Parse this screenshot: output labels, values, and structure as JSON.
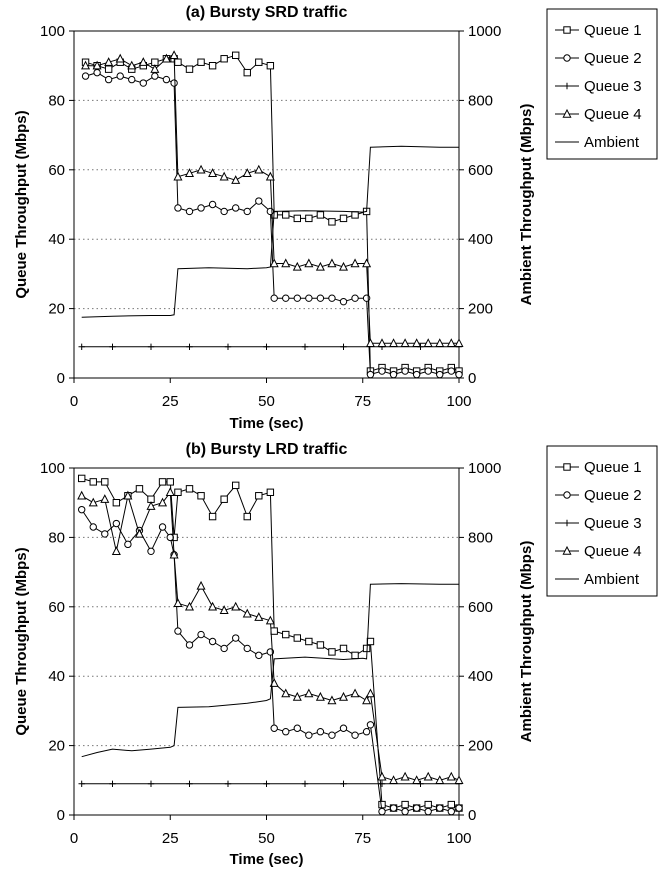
{
  "chart_data": [
    {
      "type": "line",
      "title": "(a) Bursty SRD traffic",
      "xlabel": "Time (sec)",
      "ylabel": "Queue Throughput (Mbps)",
      "y2label": "Ambient Throughput (Mbps)",
      "xlim": [
        0,
        100
      ],
      "ylim": [
        0,
        100
      ],
      "y2lim": [
        0,
        1000
      ],
      "x_ticks": [
        "0",
        "25",
        "50",
        "75",
        "100"
      ],
      "y_ticks": [
        "0",
        "20",
        "40",
        "60",
        "80",
        "100"
      ],
      "y2_ticks": [
        "0",
        "200",
        "400",
        "600",
        "800",
        "1000"
      ],
      "grid": "horizontal dotted",
      "legend_position": "right",
      "series": [
        {
          "name": "Queue 1",
          "marker": "square",
          "axis": "left",
          "x": [
            3,
            6,
            9,
            12,
            15,
            18,
            21,
            24,
            26,
            27,
            30,
            33,
            36,
            39,
            42,
            45,
            48,
            51,
            52,
            55,
            58,
            61,
            64,
            67,
            70,
            73,
            76,
            77,
            80,
            83,
            86,
            89,
            92,
            95,
            98,
            100
          ],
          "y": [
            91,
            90,
            89,
            91,
            89,
            90,
            91,
            92,
            92,
            91,
            89,
            91,
            90,
            92,
            93,
            88,
            91,
            90,
            47,
            47,
            46,
            46,
            47,
            45,
            46,
            47,
            48,
            2,
            3,
            2,
            3,
            2,
            3,
            2,
            3,
            2
          ]
        },
        {
          "name": "Queue 2",
          "marker": "circle",
          "axis": "left",
          "x": [
            3,
            6,
            9,
            12,
            15,
            18,
            21,
            24,
            26,
            27,
            30,
            33,
            36,
            39,
            42,
            45,
            48,
            51,
            52,
            55,
            58,
            61,
            64,
            67,
            70,
            73,
            76,
            77,
            80,
            83,
            86,
            89,
            92,
            95,
            98,
            100
          ],
          "y": [
            87,
            88,
            86,
            87,
            86,
            85,
            87,
            86,
            85,
            49,
            48,
            49,
            50,
            48,
            49,
            48,
            51,
            48,
            23,
            23,
            23,
            23,
            23,
            23,
            22,
            23,
            23,
            1,
            2,
            1,
            2,
            1,
            2,
            1,
            2,
            1
          ]
        },
        {
          "name": "Queue 3",
          "marker": "plus",
          "axis": "left",
          "x": [
            2,
            10,
            20,
            30,
            40,
            50,
            60,
            70,
            80,
            90,
            100
          ],
          "y": [
            9,
            9,
            9,
            9,
            9,
            9,
            9,
            9,
            9,
            9,
            9
          ]
        },
        {
          "name": "Queue 4",
          "marker": "triangle",
          "axis": "left",
          "x": [
            3,
            6,
            9,
            12,
            15,
            18,
            21,
            24,
            26,
            27,
            30,
            33,
            36,
            39,
            42,
            45,
            48,
            51,
            52,
            55,
            58,
            61,
            64,
            67,
            70,
            73,
            76,
            77,
            80,
            83,
            86,
            89,
            92,
            95,
            98,
            100
          ],
          "y": [
            90,
            90,
            91,
            92,
            90,
            91,
            89,
            92,
            93,
            58,
            59,
            60,
            59,
            58,
            57,
            59,
            60,
            58,
            33,
            33,
            32,
            33,
            32,
            33,
            32,
            33,
            33,
            10,
            10,
            10,
            10,
            10,
            10,
            10,
            10,
            10
          ]
        },
        {
          "name": "Ambient",
          "marker": "none",
          "axis": "right",
          "x": [
            2,
            10,
            20,
            25,
            26,
            27,
            35,
            45,
            50,
            51,
            52,
            60,
            70,
            75,
            76,
            77,
            85,
            95,
            100
          ],
          "y": [
            175,
            178,
            180,
            180,
            182,
            315,
            318,
            315,
            318,
            320,
            480,
            482,
            480,
            478,
            480,
            665,
            668,
            665,
            665
          ]
        }
      ]
    },
    {
      "type": "line",
      "title": "(b) Bursty LRD traffic",
      "xlabel": "Time (sec)",
      "ylabel": "Queue Throughput (Mbps)",
      "y2label": "Ambient Throughput (Mbps)",
      "xlim": [
        0,
        100
      ],
      "ylim": [
        0,
        100
      ],
      "y2lim": [
        0,
        1000
      ],
      "x_ticks": [
        "0",
        "25",
        "50",
        "75",
        "100"
      ],
      "y_ticks": [
        "0",
        "20",
        "40",
        "60",
        "80",
        "100"
      ],
      "y2_ticks": [
        "0",
        "200",
        "400",
        "600",
        "800",
        "1000"
      ],
      "grid": "horizontal dotted",
      "legend_position": "right",
      "series": [
        {
          "name": "Queue 1",
          "marker": "square",
          "axis": "left",
          "x": [
            2,
            5,
            8,
            11,
            14,
            17,
            20,
            23,
            25,
            26,
            27,
            30,
            33,
            36,
            39,
            42,
            45,
            48,
            51,
            52,
            55,
            58,
            61,
            64,
            67,
            70,
            73,
            76,
            77,
            80,
            83,
            86,
            89,
            92,
            95,
            98,
            100
          ],
          "y": [
            97,
            96,
            96,
            90,
            92,
            94,
            91,
            96,
            96,
            80,
            93,
            94,
            92,
            86,
            91,
            95,
            86,
            92,
            93,
            53,
            52,
            51,
            50,
            49,
            47,
            48,
            46,
            48,
            50,
            3,
            2,
            3,
            2,
            3,
            2,
            3,
            2
          ]
        },
        {
          "name": "Queue 2",
          "marker": "circle",
          "axis": "left",
          "x": [
            2,
            5,
            8,
            11,
            14,
            17,
            20,
            23,
            25,
            26,
            27,
            30,
            33,
            36,
            39,
            42,
            45,
            48,
            51,
            52,
            55,
            58,
            61,
            64,
            67,
            70,
            73,
            76,
            77,
            80,
            83,
            86,
            89,
            92,
            95,
            98,
            100
          ],
          "y": [
            88,
            83,
            81,
            84,
            78,
            82,
            76,
            83,
            80,
            75,
            53,
            49,
            52,
            50,
            48,
            51,
            48,
            46,
            47,
            25,
            24,
            25,
            23,
            24,
            23,
            25,
            23,
            24,
            26,
            1,
            2,
            1,
            2,
            1,
            2,
            1,
            2
          ]
        },
        {
          "name": "Queue 3",
          "marker": "plus",
          "axis": "left",
          "x": [
            2,
            10,
            20,
            30,
            40,
            50,
            60,
            70,
            80,
            90,
            100
          ],
          "y": [
            9,
            9,
            9,
            9,
            9,
            9,
            9,
            9,
            9,
            9,
            9
          ]
        },
        {
          "name": "Queue 4",
          "marker": "triangle",
          "axis": "left",
          "x": [
            2,
            5,
            8,
            11,
            14,
            17,
            20,
            23,
            25,
            26,
            27,
            30,
            33,
            36,
            39,
            42,
            45,
            48,
            51,
            52,
            55,
            58,
            61,
            64,
            67,
            70,
            73,
            76,
            77,
            80,
            83,
            86,
            89,
            92,
            95,
            98,
            100
          ],
          "y": [
            92,
            90,
            91,
            76,
            92,
            81,
            89,
            90,
            93,
            75,
            61,
            60,
            66,
            60,
            59,
            60,
            58,
            57,
            56,
            38,
            35,
            34,
            35,
            34,
            33,
            34,
            35,
            33,
            35,
            11,
            10,
            11,
            10,
            11,
            10,
            11,
            10
          ]
        },
        {
          "name": "Ambient",
          "marker": "none",
          "axis": "right",
          "x": [
            2,
            6,
            10,
            15,
            20,
            25,
            26,
            27,
            35,
            45,
            50,
            51,
            52,
            60,
            70,
            75,
            76,
            77,
            85,
            95,
            100
          ],
          "y": [
            168,
            180,
            190,
            185,
            190,
            195,
            200,
            310,
            312,
            322,
            330,
            335,
            450,
            455,
            448,
            452,
            450,
            665,
            667,
            665,
            665
          ]
        }
      ]
    }
  ]
}
